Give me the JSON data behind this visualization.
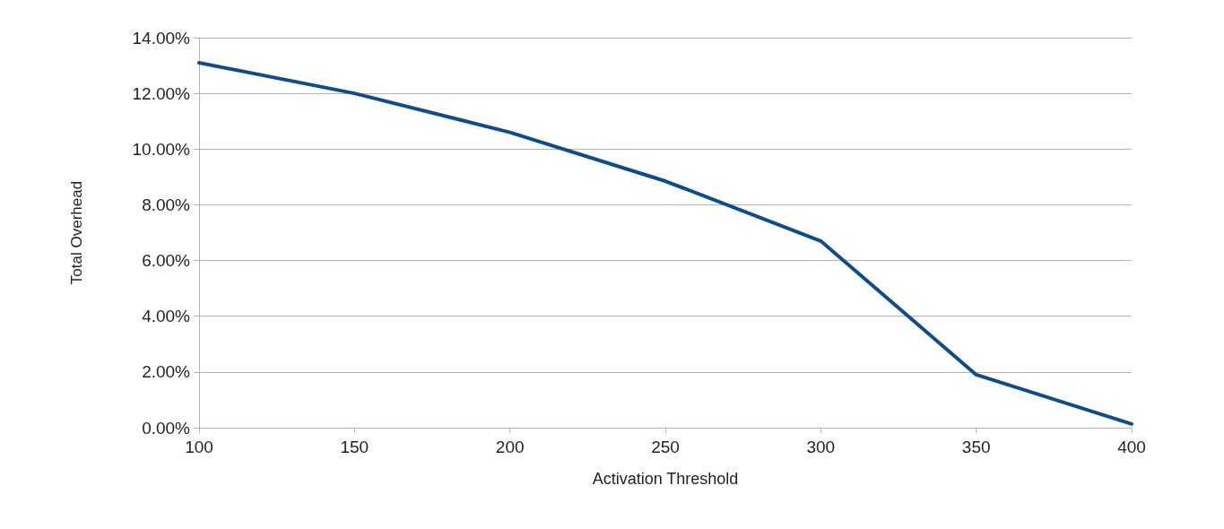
{
  "chart_data": {
    "type": "line",
    "xlabel": "Activation Threshold",
    "ylabel": "Total Overhead",
    "x": [
      100,
      150,
      200,
      250,
      300,
      350,
      400
    ],
    "series": [
      {
        "color": "#0f4c8a",
        "values": [
          13.1,
          12.0,
          10.6,
          8.85,
          6.7,
          1.9,
          0.13
        ]
      }
    ],
    "xlim": [
      100,
      400
    ],
    "xticks": [
      100,
      150,
      200,
      250,
      300,
      350,
      400
    ],
    "ylim": [
      0,
      14
    ],
    "yticks": [
      {
        "value": 0,
        "label": "0.00%"
      },
      {
        "value": 2,
        "label": "2.00%"
      },
      {
        "value": 4,
        "label": "4.00%"
      },
      {
        "value": 6,
        "label": "6.00%"
      },
      {
        "value": 8,
        "label": "8.00%"
      },
      {
        "value": 10,
        "label": "10.00%"
      },
      {
        "value": 12,
        "label": "12.00%"
      },
      {
        "value": 14,
        "label": "14.00%"
      }
    ],
    "grid": "y",
    "marker": "none",
    "line_style": "solid"
  }
}
